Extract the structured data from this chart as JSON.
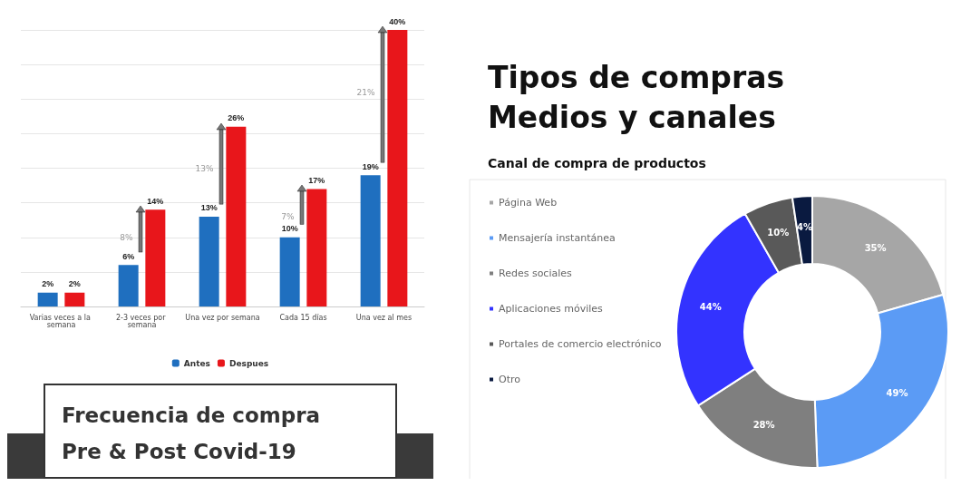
{
  "chart_data": [
    {
      "type": "bar",
      "title": "Frecuencia de compra Pre & Post Covid-19",
      "categories": [
        "Varias veces a la semana",
        "2-3 veces por semana",
        "Una vez por semana",
        "Cada 15 días",
        "Una vez al mes"
      ],
      "series": [
        {
          "name": "Antes",
          "color": "#1f6fbf",
          "values": [
            2,
            6,
            13,
            10,
            19
          ],
          "value_labels": [
            "2%",
            "6%",
            "13%",
            "10%",
            "19%"
          ]
        },
        {
          "name": "Despues",
          "color": "#e8161b",
          "values": [
            2,
            14,
            26,
            17,
            40
          ],
          "value_labels": [
            "2%",
            "14%",
            "26%",
            "17%",
            "40%"
          ]
        }
      ],
      "ylim": [
        0,
        40
      ],
      "yticks": [
        {
          "value": 0,
          "label": null
        },
        {
          "value": 5,
          "label": null
        },
        {
          "value": 10,
          "label": null
        },
        {
          "value": 15,
          "label": null
        },
        {
          "value": 20,
          "label": null
        },
        {
          "value": 25,
          "label": null
        },
        {
          "value": 30,
          "label": null
        },
        {
          "value": 35,
          "label": null
        },
        {
          "value": 40,
          "label": null
        }
      ],
      "tick_labels": "x",
      "grid": "y",
      "legend": "bottom",
      "annotations": [
        {
          "text": "8%",
          "x": "2-3 veces por semana",
          "y": 10
        },
        {
          "text": "13%",
          "x": "Una vez por semana",
          "y": 20
        },
        {
          "text": "7%",
          "x": "Cada 15 días",
          "y": 13
        },
        {
          "text": "21%",
          "x": "Una vez al mes",
          "y": 31
        }
      ]
    },
    {
      "type": "donut",
      "title": "Tipos de compras Medios y canales",
      "subtitle": "Canal de compra de productos",
      "categories": [
        "Página Web",
        "Mensajería instantánea",
        "Redes sociales",
        "Aplicaciones móviles",
        "Portales de comercio electrónico",
        "Otro"
      ],
      "values": [
        35,
        49,
        28,
        44,
        10,
        4
      ],
      "value_labels": [
        "35%",
        "49%",
        "28%",
        "44%",
        "10%",
        "4%"
      ],
      "colors": [
        "#a6a6a6",
        "#5b9bf5",
        "#7f7f7f",
        "#3333ff",
        "#595959",
        "#0a1a40"
      ],
      "legend": "left"
    }
  ]
}
